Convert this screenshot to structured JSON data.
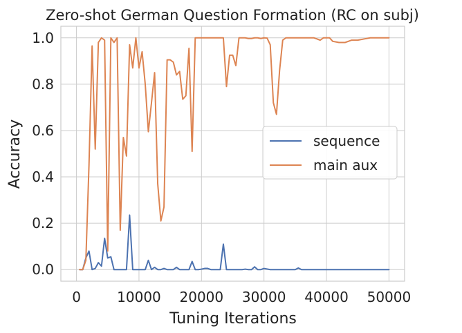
{
  "chart_data": {
    "type": "line",
    "title": "Zero-shot German Question Formation (RC on subj)",
    "xlabel": "Tuning Iterations",
    "ylabel": "Accuracy",
    "xlim": [
      -2500,
      52500
    ],
    "ylim": [
      -0.05,
      1.05
    ],
    "xticks": [
      0,
      10000,
      20000,
      30000,
      40000,
      50000
    ],
    "yticks": [
      0.0,
      0.2,
      0.4,
      0.6,
      0.8,
      1.0
    ],
    "xtick_labels": [
      "0",
      "10000",
      "20000",
      "30000",
      "40000",
      "50000"
    ],
    "ytick_labels": [
      "0.0",
      "0.2",
      "0.4",
      "0.6",
      "0.8",
      "1.0"
    ],
    "grid": true,
    "legend_position": "center-right",
    "series": [
      {
        "name": "sequence",
        "color": "#4c72b0",
        "x": [
          500,
          1000,
          1500,
          2000,
          2500,
          3000,
          3500,
          4000,
          4500,
          5000,
          5500,
          6000,
          6500,
          7000,
          7500,
          8000,
          8500,
          9000,
          9500,
          10000,
          10500,
          11000,
          11500,
          12000,
          12500,
          13000,
          13500,
          14000,
          14500,
          15000,
          15500,
          16000,
          16500,
          17000,
          17500,
          18000,
          18500,
          19000,
          19500,
          20000,
          20500,
          21000,
          21500,
          22000,
          22500,
          23000,
          23500,
          24000,
          24500,
          25000,
          25500,
          26000,
          26500,
          27000,
          27500,
          28000,
          28500,
          29000,
          29500,
          30000,
          31000,
          32000,
          33000,
          34000,
          35000,
          35500,
          36000,
          37000,
          38000,
          39000,
          40000,
          42000,
          44000,
          46000,
          48000,
          50000
        ],
        "values": [
          0.0,
          0.0,
          0.05,
          0.08,
          0.0,
          0.005,
          0.03,
          0.015,
          0.135,
          0.05,
          0.055,
          0.0,
          0.0,
          0.0,
          0.0,
          0.0,
          0.235,
          0.0,
          0.0,
          0.0,
          0.0,
          0.0,
          0.04,
          0.0,
          0.01,
          0.0,
          0.0,
          0.005,
          0.0,
          0.0,
          0.0,
          0.01,
          0.0,
          0.0,
          0.0,
          0.0,
          0.035,
          0.0,
          0.0,
          0.002,
          0.005,
          0.005,
          0.0,
          0.0,
          0.0,
          0.0,
          0.11,
          0.0,
          0.0,
          0.0,
          0.0,
          0.0,
          0.0,
          0.002,
          0.0,
          0.0,
          0.012,
          0.0,
          0.0,
          0.005,
          0.0,
          0.0,
          0.0,
          0.0,
          0.0,
          0.007,
          0.0,
          0.0,
          0.0,
          0.0,
          0.0,
          0.0,
          0.0,
          0.0,
          0.0,
          0.0
        ]
      },
      {
        "name": "main aux",
        "color": "#dd8452",
        "x": [
          500,
          1000,
          1500,
          2000,
          2500,
          3000,
          3500,
          4000,
          4500,
          5000,
          5500,
          6000,
          6500,
          7000,
          7500,
          8000,
          8500,
          9000,
          9500,
          10000,
          10500,
          11000,
          11500,
          12000,
          12500,
          13000,
          13500,
          14000,
          14500,
          15000,
          15500,
          16000,
          16500,
          17000,
          17500,
          18000,
          18500,
          19000,
          19500,
          20000,
          21000,
          22000,
          23000,
          23500,
          24000,
          24500,
          25000,
          25500,
          26000,
          26500,
          27000,
          27500,
          28000,
          28500,
          29000,
          29500,
          30000,
          30500,
          31000,
          31500,
          32000,
          32500,
          33000,
          33500,
          34000,
          35000,
          36000,
          37000,
          38000,
          38500,
          39000,
          39500,
          40000,
          40500,
          41000,
          42000,
          43000,
          43500,
          44000,
          45000,
          46000,
          47000,
          48000,
          49000,
          50000
        ],
        "values": [
          0.0,
          0.0,
          0.04,
          0.45,
          0.965,
          0.52,
          0.98,
          1.0,
          0.99,
          0.08,
          1.0,
          0.98,
          1.0,
          0.17,
          0.57,
          0.49,
          0.97,
          0.87,
          1.0,
          0.87,
          0.94,
          0.8,
          0.595,
          0.72,
          0.85,
          0.37,
          0.21,
          0.27,
          0.905,
          0.905,
          0.895,
          0.84,
          0.855,
          0.735,
          0.75,
          0.955,
          0.51,
          1.0,
          1.0,
          1.0,
          1.0,
          1.0,
          1.0,
          1.0,
          0.79,
          0.925,
          0.925,
          0.88,
          1.0,
          1.0,
          1.0,
          0.997,
          0.997,
          1.0,
          1.0,
          0.997,
          1.0,
          0.999,
          0.97,
          0.72,
          0.67,
          0.86,
          0.99,
          1.0,
          1.0,
          1.0,
          1.0,
          1.0,
          1.0,
          0.995,
          0.99,
          1.0,
          1.0,
          1.0,
          0.985,
          0.98,
          0.98,
          0.985,
          0.99,
          0.99,
          0.995,
          1.0,
          1.0,
          1.0,
          1.0
        ]
      }
    ]
  }
}
